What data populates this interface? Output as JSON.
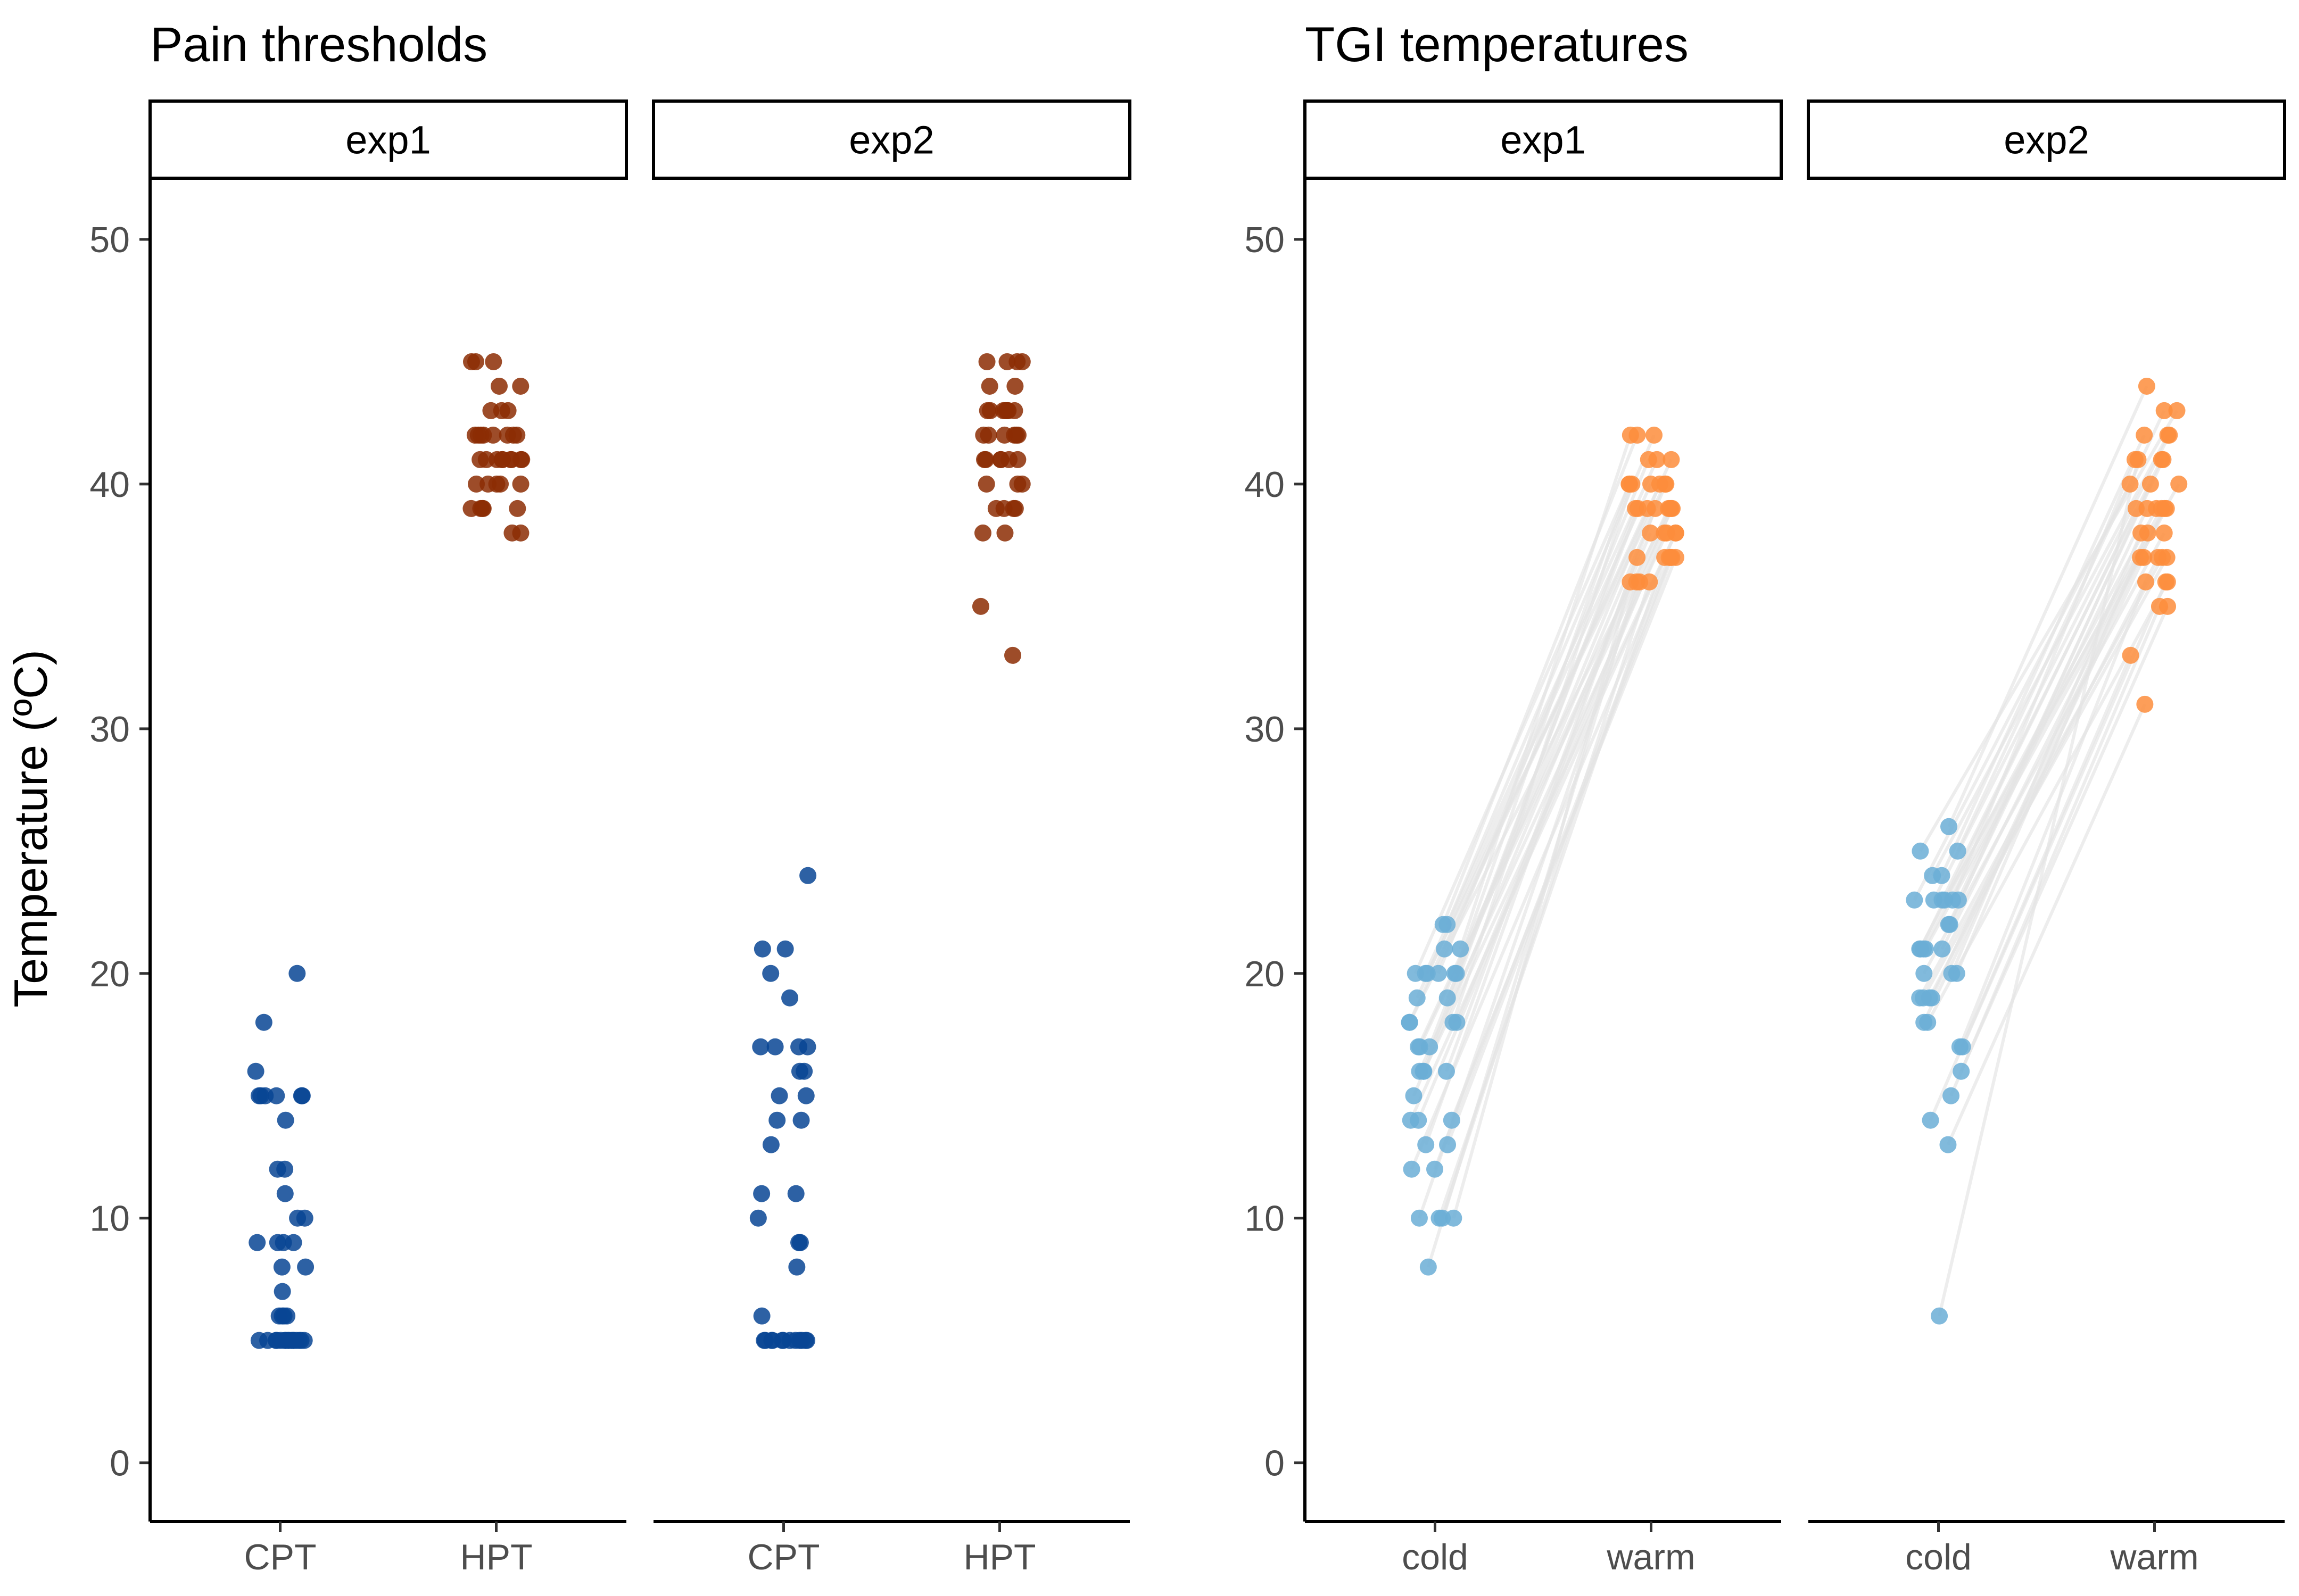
{
  "chart_data": [
    {
      "type": "scatter",
      "title": "Pain thresholds",
      "ylabel": "Temperature (ºC)",
      "ylim": [
        -2.4,
        52.5
      ],
      "yticks": [
        0,
        10,
        20,
        30,
        40,
        50
      ],
      "grid": false,
      "legend": "none",
      "facets": [
        {
          "label": "exp1",
          "categories": [
            "CPT",
            "HPT"
          ],
          "colors": {
            "CPT": "#084594",
            "HPT": "#8c2d04"
          },
          "points": {
            "CPT": [
              20,
              18,
              16,
              15,
              15,
              15,
              15,
              15,
              15,
              14,
              12,
              12,
              11,
              10,
              10,
              9,
              9,
              9,
              9,
              8,
              8,
              7,
              6,
              6,
              6,
              6,
              5,
              5,
              5,
              5,
              5,
              5,
              5,
              5,
              5,
              5,
              5,
              5,
              5,
              5,
              5,
              5
            ],
            "HPT": [
              45,
              45,
              45,
              44,
              44,
              43,
              43,
              43,
              42,
              42,
              42,
              42,
              42,
              42,
              42,
              42,
              41,
              41,
              41,
              41,
              41,
              41,
              41,
              41,
              41,
              40,
              40,
              40,
              40,
              40,
              39,
              39,
              39,
              39,
              39,
              38,
              38
            ]
          }
        },
        {
          "label": "exp2",
          "categories": [
            "CPT",
            "HPT"
          ],
          "colors": {
            "CPT": "#084594",
            "HPT": "#8c2d04"
          },
          "points": {
            "CPT": [
              24,
              21,
              21,
              20,
              19,
              17,
              17,
              17,
              17,
              16,
              16,
              15,
              15,
              14,
              14,
              13,
              11,
              11,
              10,
              9,
              9,
              8,
              6,
              5,
              5,
              5,
              5,
              5,
              5,
              5,
              5,
              5,
              5,
              5,
              5
            ],
            "HPT": [
              45,
              45,
              45,
              45,
              44,
              44,
              43,
              43,
              43,
              43,
              43,
              43,
              43,
              42,
              42,
              42,
              42,
              42,
              42,
              41,
              41,
              41,
              41,
              41,
              41,
              40,
              40,
              40,
              39,
              39,
              39,
              39,
              38,
              38,
              35,
              33
            ]
          }
        }
      ]
    },
    {
      "type": "scatter",
      "title": "TGI temperatures",
      "ylabel": "",
      "ylim": [
        -2.4,
        52.5
      ],
      "yticks": [
        0,
        10,
        20,
        30,
        40,
        50
      ],
      "grid": false,
      "legend": "none",
      "paired_lines": true,
      "facets": [
        {
          "label": "exp1",
          "categories": [
            "cold",
            "warm"
          ],
          "colors": {
            "cold": "#6baed6",
            "warm": "#fd8d3c",
            "pair_line": "#e4e4e4"
          },
          "points": {
            "cold": [
              22,
              22,
              21,
              21,
              20,
              20,
              20,
              20,
              20,
              20,
              19,
              19,
              18,
              18,
              18,
              18,
              17,
              17,
              17,
              16,
              16,
              16,
              16,
              15,
              14,
              14,
              14,
              13,
              13,
              12,
              12,
              10,
              10,
              10,
              10,
              8
            ],
            "warm": [
              42,
              42,
              42,
              41,
              41,
              41,
              40,
              40,
              40,
              40,
              40,
              40,
              40,
              39,
              39,
              39,
              39,
              39,
              39,
              39,
              39,
              38,
              38,
              38,
              38,
              38,
              37,
              37,
              37,
              37,
              37,
              37,
              36,
              36,
              36,
              36
            ]
          }
        },
        {
          "label": "exp2",
          "categories": [
            "cold",
            "warm"
          ],
          "colors": {
            "cold": "#6baed6",
            "warm": "#fd8d3c",
            "pair_line": "#e4e4e4"
          },
          "points": {
            "cold": [
              26,
              25,
              25,
              24,
              24,
              23,
              23,
              23,
              23,
              23,
              23,
              22,
              22,
              21,
              21,
              21,
              21,
              21,
              20,
              20,
              20,
              19,
              19,
              19,
              19,
              18,
              18,
              17,
              17,
              16,
              15,
              14,
              13,
              6
            ],
            "warm": [
              44,
              43,
              43,
              42,
              42,
              42,
              41,
              41,
              41,
              40,
              40,
              40,
              39,
              39,
              39,
              39,
              39,
              39,
              38,
              38,
              38,
              37,
              37,
              37,
              37,
              37,
              36,
              36,
              36,
              35,
              35,
              33,
              31,
              41
            ]
          }
        }
      ]
    }
  ]
}
